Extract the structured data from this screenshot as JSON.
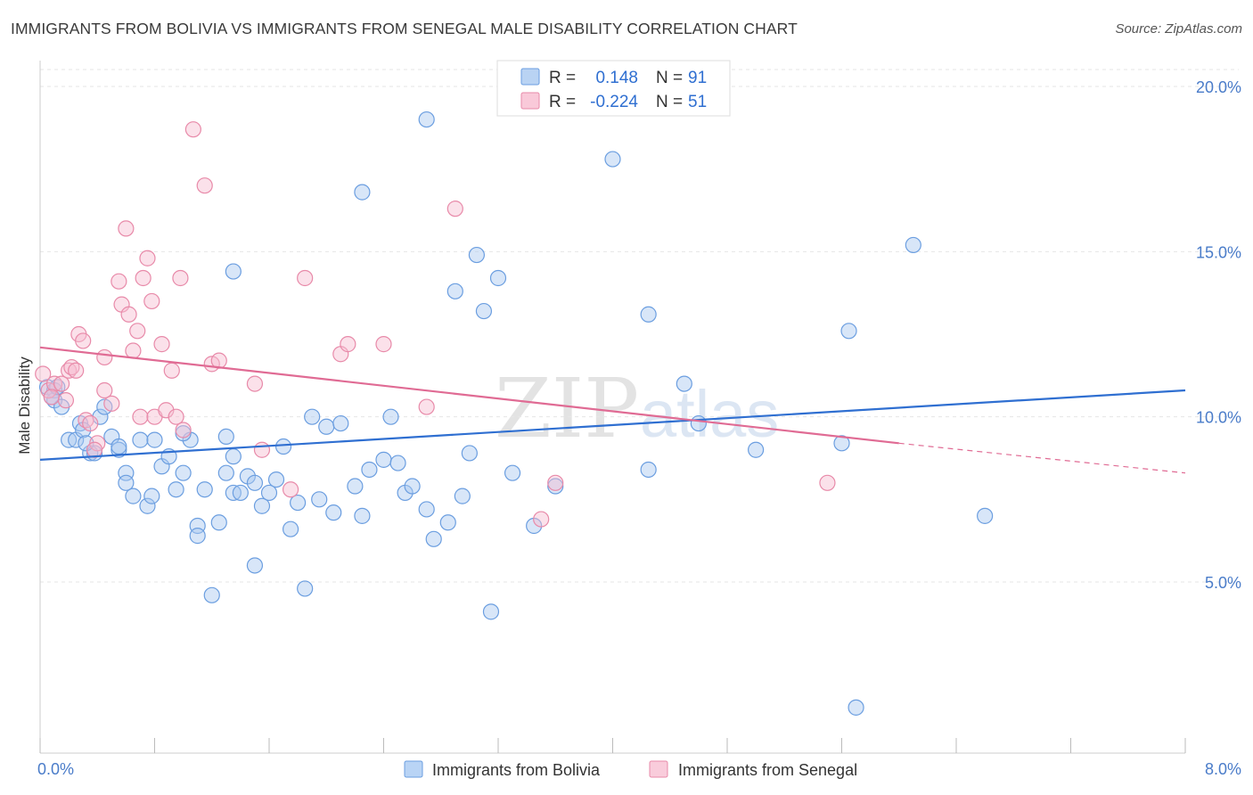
{
  "title": "IMMIGRANTS FROM BOLIVIA VS IMMIGRANTS FROM SENEGAL MALE DISABILITY CORRELATION CHART",
  "source": "Source: ZipAtlas.com",
  "watermark": {
    "part1": "ZIP",
    "part2": "atlas"
  },
  "legend_top": [
    {
      "r_label": "R =",
      "r_value": "0.148",
      "n_label": "N =",
      "n_value": "91",
      "color": "#a8c8f0",
      "stroke": "#6b9ee0"
    },
    {
      "r_label": "R =",
      "r_value": "-0.224",
      "n_label": "N =",
      "n_value": "51",
      "color": "#f7bcd0",
      "stroke": "#e88aa9"
    }
  ],
  "legend_bottom": [
    {
      "label": "Immigrants from Bolivia",
      "color": "#b9d4f5",
      "stroke": "#6b9ee0"
    },
    {
      "label": "Immigrants from Senegal",
      "color": "#f9ccdb",
      "stroke": "#e88aa9"
    }
  ],
  "chart_data": {
    "type": "scatter",
    "title": "IMMIGRANTS FROM BOLIVIA VS IMMIGRANTS FROM SENEGAL MALE DISABILITY CORRELATION CHART",
    "ylabel": "Male Disability",
    "xlabel": "",
    "xlim": [
      0,
      8.0
    ],
    "ylim": [
      0,
      20.5
    ],
    "x_tick_labels": [
      "0.0%",
      "8.0%"
    ],
    "y_ticks": [
      5,
      10,
      15,
      20
    ],
    "y_tick_labels": [
      "5.0%",
      "10.0%",
      "15.0%",
      "20.0%"
    ],
    "grid": true,
    "series": [
      {
        "name": "Immigrants from Bolivia",
        "color": "#a8c8f0",
        "stroke": "#6b9ee0",
        "line_color": "#2f6fd1",
        "trend": {
          "x0": 0.0,
          "y0": 8.7,
          "x1": 8.0,
          "y1": 10.8
        },
        "points": [
          [
            0.05,
            10.9
          ],
          [
            0.1,
            10.8
          ],
          [
            0.1,
            10.5
          ],
          [
            0.15,
            10.3
          ],
          [
            0.2,
            9.3
          ],
          [
            0.25,
            9.3
          ],
          [
            0.28,
            9.8
          ],
          [
            0.3,
            9.6
          ],
          [
            0.35,
            8.9
          ],
          [
            0.38,
            8.9
          ],
          [
            0.42,
            10.0
          ],
          [
            0.45,
            10.3
          ],
          [
            0.5,
            9.4
          ],
          [
            0.55,
            9.0
          ],
          [
            0.6,
            8.3
          ],
          [
            0.65,
            7.6
          ],
          [
            0.7,
            9.3
          ],
          [
            0.8,
            9.3
          ],
          [
            0.85,
            8.5
          ],
          [
            0.6,
            8.0
          ],
          [
            0.75,
            7.3
          ],
          [
            0.78,
            7.6
          ],
          [
            0.9,
            8.8
          ],
          [
            0.95,
            7.8
          ],
          [
            1.0,
            8.3
          ],
          [
            1.05,
            9.3
          ],
          [
            1.0,
            9.5
          ],
          [
            1.1,
            6.7
          ],
          [
            1.1,
            6.4
          ],
          [
            1.15,
            7.8
          ],
          [
            1.2,
            4.6
          ],
          [
            1.25,
            6.8
          ],
          [
            1.3,
            9.4
          ],
          [
            1.3,
            8.3
          ],
          [
            1.35,
            8.8
          ],
          [
            1.35,
            7.7
          ],
          [
            1.4,
            7.7
          ],
          [
            1.45,
            8.2
          ],
          [
            1.5,
            8.0
          ],
          [
            1.5,
            5.5
          ],
          [
            1.55,
            7.3
          ],
          [
            1.6,
            7.7
          ],
          [
            1.65,
            8.1
          ],
          [
            1.7,
            9.1
          ],
          [
            1.75,
            6.6
          ],
          [
            1.8,
            7.4
          ],
          [
            1.85,
            4.8
          ],
          [
            1.9,
            10.0
          ],
          [
            1.95,
            7.5
          ],
          [
            2.0,
            9.7
          ],
          [
            2.05,
            7.1
          ],
          [
            2.1,
            9.8
          ],
          [
            2.2,
            7.9
          ],
          [
            2.25,
            7.0
          ],
          [
            2.3,
            8.4
          ],
          [
            2.4,
            8.7
          ],
          [
            2.45,
            10.0
          ],
          [
            2.5,
            8.6
          ],
          [
            2.55,
            7.7
          ],
          [
            2.6,
            7.9
          ],
          [
            2.7,
            7.2
          ],
          [
            2.75,
            6.3
          ],
          [
            2.85,
            6.8
          ],
          [
            2.95,
            7.6
          ],
          [
            3.0,
            8.9
          ],
          [
            3.1,
            13.2
          ],
          [
            3.15,
            4.1
          ],
          [
            3.2,
            14.2
          ],
          [
            3.3,
            8.3
          ],
          [
            3.45,
            6.7
          ],
          [
            3.6,
            7.9
          ],
          [
            2.9,
            13.8
          ],
          [
            3.05,
            14.9
          ],
          [
            2.7,
            19.0
          ],
          [
            2.25,
            16.8
          ],
          [
            1.35,
            14.4
          ],
          [
            4.0,
            17.8
          ],
          [
            4.25,
            13.1
          ],
          [
            4.25,
            8.4
          ],
          [
            4.5,
            11.0
          ],
          [
            4.6,
            9.8
          ],
          [
            5.0,
            9.0
          ],
          [
            5.6,
            9.2
          ],
          [
            5.65,
            12.6
          ],
          [
            5.7,
            1.2
          ],
          [
            6.1,
            15.2
          ],
          [
            6.6,
            7.0
          ],
          [
            0.08,
            10.6
          ],
          [
            0.12,
            10.9
          ],
          [
            0.32,
            9.2
          ],
          [
            0.55,
            9.1
          ]
        ]
      },
      {
        "name": "Immigrants from Senegal",
        "color": "#f7bcd0",
        "stroke": "#e88aa9",
        "line_color": "#e06b94",
        "trend": {
          "x0": 0.0,
          "y0": 12.1,
          "x1": 6.0,
          "y1": 9.2
        },
        "trend_dashed": {
          "x0": 6.0,
          "y0": 9.2,
          "x1": 8.0,
          "y1": 8.3
        },
        "points": [
          [
            0.02,
            11.3
          ],
          [
            0.06,
            10.8
          ],
          [
            0.1,
            11.0
          ],
          [
            0.15,
            11.0
          ],
          [
            0.2,
            11.4
          ],
          [
            0.22,
            11.5
          ],
          [
            0.25,
            11.4
          ],
          [
            0.27,
            12.5
          ],
          [
            0.3,
            12.3
          ],
          [
            0.32,
            9.9
          ],
          [
            0.35,
            9.8
          ],
          [
            0.4,
            9.2
          ],
          [
            0.45,
            11.8
          ],
          [
            0.45,
            10.8
          ],
          [
            0.5,
            10.4
          ],
          [
            0.55,
            14.1
          ],
          [
            0.57,
            13.4
          ],
          [
            0.6,
            15.7
          ],
          [
            0.62,
            13.1
          ],
          [
            0.65,
            12.0
          ],
          [
            0.68,
            12.6
          ],
          [
            0.7,
            10.0
          ],
          [
            0.72,
            14.2
          ],
          [
            0.75,
            14.8
          ],
          [
            0.78,
            13.5
          ],
          [
            0.8,
            10.0
          ],
          [
            0.85,
            12.2
          ],
          [
            0.88,
            10.2
          ],
          [
            0.92,
            11.4
          ],
          [
            0.95,
            10.0
          ],
          [
            0.98,
            14.2
          ],
          [
            1.0,
            9.6
          ],
          [
            1.07,
            18.7
          ],
          [
            1.15,
            17.0
          ],
          [
            1.2,
            11.6
          ],
          [
            1.25,
            11.7
          ],
          [
            1.5,
            11.0
          ],
          [
            1.55,
            9.0
          ],
          [
            1.75,
            7.8
          ],
          [
            1.85,
            14.2
          ],
          [
            2.1,
            11.9
          ],
          [
            2.15,
            12.2
          ],
          [
            2.4,
            12.2
          ],
          [
            2.7,
            10.3
          ],
          [
            2.9,
            16.3
          ],
          [
            3.5,
            6.9
          ],
          [
            3.6,
            8.0
          ],
          [
            5.5,
            8.0
          ],
          [
            0.08,
            10.6
          ],
          [
            0.38,
            9.0
          ],
          [
            0.18,
            10.5
          ]
        ]
      }
    ]
  }
}
